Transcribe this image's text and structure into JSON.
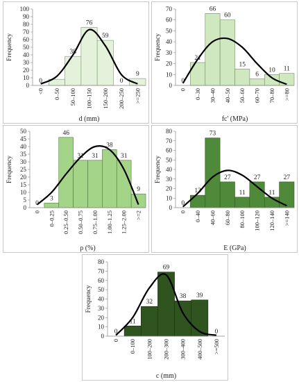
{
  "chart_data": [
    {
      "id": "d",
      "type": "bar",
      "ylabel": "Frequency",
      "xlabel": "d (mm)",
      "ylim": [
        0,
        100
      ],
      "yticks": [
        0,
        10,
        20,
        30,
        40,
        50,
        60,
        70,
        80,
        90,
        100
      ],
      "categories": [
        "<0",
        "0–50",
        "50–100",
        "100–150",
        "150–200",
        "200–250",
        ">=250"
      ],
      "values": [
        0,
        8,
        38,
        76,
        59,
        0,
        9
      ],
      "data_labels": [
        "0",
        "",
        "38",
        "76",
        "59",
        "0",
        "9"
      ],
      "curve": [
        2,
        12,
        40,
        73,
        52,
        14,
        2
      ],
      "bar_color": "#e4f2dc",
      "bar_stroke": "#7a9a6a"
    },
    {
      "id": "fc",
      "type": "bar",
      "ylabel": "Frequency",
      "xlabel": "fc' (MPa)",
      "ylim": [
        0,
        70
      ],
      "yticks": [
        0,
        10,
        20,
        30,
        40,
        50,
        60,
        70
      ],
      "categories": [
        "0",
        "0–30",
        "30–40",
        "40–50",
        "50–60",
        "60–70",
        "70–80",
        ">=80"
      ],
      "values": [
        0,
        21,
        66,
        60,
        15,
        6,
        10,
        11
      ],
      "data_labels": [
        "0",
        "21",
        "66",
        "60",
        "15",
        "6",
        "10",
        "11"
      ],
      "curve": [
        2,
        24,
        40,
        43,
        35,
        20,
        7,
        1
      ],
      "bar_color": "#cfe8bf",
      "bar_stroke": "#6f8f5f"
    },
    {
      "id": "rho",
      "type": "bar",
      "ylabel": "Frequency",
      "xlabel": "ρ (%)",
      "ylim": [
        0,
        50
      ],
      "yticks": [
        0,
        5,
        10,
        15,
        20,
        25,
        30,
        35,
        40,
        45,
        50
      ],
      "categories": [
        "0",
        "0–0.25",
        "0.25–0.50",
        "0.50–0.75",
        "0.75–1.00",
        "1.00–1.25",
        "1.25–2.00",
        ">=2"
      ],
      "values": [
        0,
        3,
        46,
        31,
        31,
        38,
        31,
        9
      ],
      "data_labels": [
        "0",
        "3",
        "46",
        "31",
        "31",
        "38",
        "31",
        "9"
      ],
      "curve": [
        2,
        10,
        22,
        33,
        40,
        38,
        25,
        2
      ],
      "bar_color": "#a4d487",
      "bar_stroke": "#4f7a3a"
    },
    {
      "id": "E",
      "type": "bar",
      "ylabel": "Frequency",
      "xlabel": "E (GPa)",
      "ylim": [
        0,
        80
      ],
      "yticks": [
        0,
        10,
        20,
        30,
        40,
        50,
        60,
        70,
        80
      ],
      "categories": [
        "0",
        "0–40",
        "40–60",
        "60–80",
        "80–100",
        "100–120",
        "120–140",
        ">=140"
      ],
      "values": [
        0,
        13,
        73,
        27,
        11,
        27,
        11,
        27
      ],
      "data_labels": [
        "0",
        "13",
        "73",
        "27",
        "11",
        "27",
        "11",
        "27"
      ],
      "curve": [
        1,
        15,
        32,
        39,
        34,
        22,
        10,
        2
      ],
      "bar_color": "#4f8a3a",
      "bar_stroke": "#2f5a22"
    },
    {
      "id": "c",
      "type": "bar",
      "ylabel": "Frequency",
      "xlabel": "c (mm)",
      "ylim": [
        0,
        80
      ],
      "yticks": [
        0,
        10,
        20,
        30,
        40,
        50,
        60,
        70,
        80
      ],
      "categories": [
        "0",
        "0–100",
        "100–200",
        "200–300",
        "300–400",
        "400–500",
        ">=500"
      ],
      "values": [
        0,
        11,
        32,
        69,
        38,
        39,
        0
      ],
      "data_labels": [
        "0",
        "11",
        "32",
        "69",
        "38",
        "39",
        "0"
      ],
      "curve": [
        1,
        20,
        52,
        66,
        25,
        5,
        1
      ],
      "bar_color": "#2f5420",
      "bar_stroke": "#1a3312"
    }
  ]
}
